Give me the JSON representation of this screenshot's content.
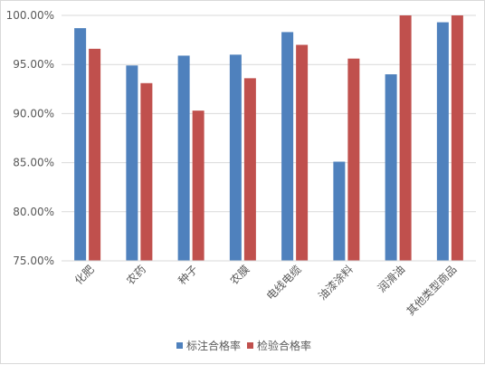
{
  "chart_data": {
    "type": "bar",
    "categories": [
      "化肥",
      "农药",
      "种子",
      "农膜",
      "电线电缆",
      "油漆涂料",
      "润滑油",
      "其他类型商品"
    ],
    "series": [
      {
        "name": "标注合格率",
        "color": "#4f81bd",
        "values": [
          98.7,
          94.9,
          95.9,
          96.0,
          98.3,
          85.1,
          94.0,
          99.3
        ]
      },
      {
        "name": "检验合格率",
        "color": "#c0504d",
        "values": [
          96.6,
          93.1,
          90.3,
          93.6,
          97.0,
          95.6,
          100.0,
          100.0
        ]
      }
    ],
    "y_ticks": [
      "100.00%",
      "95.00%",
      "90.00%",
      "85.00%",
      "80.00%",
      "75.00%"
    ],
    "ylim": [
      75,
      100
    ],
    "grid": true,
    "legend_position": "bottom"
  }
}
